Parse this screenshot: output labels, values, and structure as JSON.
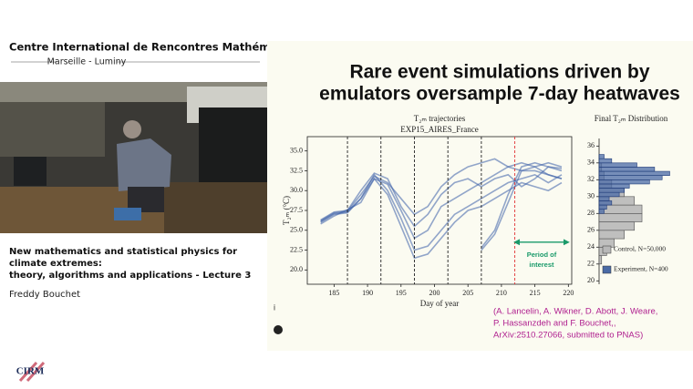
{
  "header": {
    "title": "Centre International de Rencontres Mathématiques",
    "subtitle": "Marseille - Luminy"
  },
  "lecture": {
    "title_lines": [
      "New mathematics and statistical physics for",
      "climate extremes:",
      "theory, algorithms and applications - Lecture 3"
    ],
    "speaker": "Freddy Bouchet"
  },
  "logo": "CIRM",
  "slide": {
    "title_lines": [
      "Rare event simulations driven by",
      "emulators oversample 7-day heatwaves"
    ]
  },
  "citation": {
    "lines": [
      "(A. Lancelin, A. Wikner, D. Abott, J. Weare,",
      "P. Hassanzdeh and F. Bouchet,,",
      "ArXiv:2510.27066, submitted to PNAS)"
    ]
  },
  "chart_data": [
    {
      "type": "line",
      "title": "T₂ₘ trajectories",
      "subtitle": "EXP15_AIRES_France",
      "x_label": "Day of year",
      "y_label": "T₂ₘ (°C)",
      "xlim": [
        181,
        220.5
      ],
      "xticks": [
        185,
        190,
        195,
        200,
        205,
        210,
        215,
        220
      ],
      "ylim": [
        18.2,
        36.8
      ],
      "yticks": [
        {
          "value": 20,
          "label": "20.0"
        },
        {
          "value": 22.5,
          "label": "22.5"
        },
        {
          "value": 25,
          "label": "25.0"
        },
        {
          "value": 27.5,
          "label": "27.5"
        },
        {
          "value": 30,
          "label": "30.0"
        },
        {
          "value": 32.5,
          "label": "32.5"
        },
        {
          "value": 35,
          "label": "35.0"
        }
      ],
      "vlines": [
        {
          "x": 187,
          "color": "#222222"
        },
        {
          "x": 192,
          "color": "#222222"
        },
        {
          "x": 197,
          "color": "#222222"
        },
        {
          "x": 202,
          "color": "#222222"
        },
        {
          "x": 207,
          "color": "#222222"
        },
        {
          "x": 212,
          "color": "#e03030"
        }
      ],
      "annotation": {
        "lines": [
          "Period of",
          "interest"
        ],
        "x": [
          212,
          220
        ],
        "y": 23.5,
        "color": "#1a9a6a"
      },
      "x": [
        183,
        185,
        187,
        189,
        191,
        193,
        195,
        197,
        199,
        201,
        203,
        205,
        207,
        209,
        211,
        213,
        215,
        217,
        219
      ],
      "series": [
        {
          "color": "#3a5fa8",
          "values": [
            25.8,
            26.8,
            27.6,
            28.5,
            31.5,
            30.8,
            27.5,
            24,
            25,
            28,
            29,
            30,
            31,
            32,
            33,
            33.5,
            33,
            33.5,
            33
          ]
        },
        {
          "color": "#3a5fa8",
          "values": [
            26.0,
            27.0,
            27.2,
            29,
            32,
            30,
            26.5,
            22.5,
            23,
            25,
            27,
            28,
            29,
            30,
            31,
            31.5,
            32,
            31,
            32
          ]
        },
        {
          "color": "#3a5fa8",
          "values": [
            26.2,
            27.2,
            27.4,
            29.5,
            31.8,
            31,
            29,
            27,
            28,
            30.5,
            32,
            33,
            33.5,
            34,
            33,
            32.5,
            33,
            32,
            31.5
          ]
        },
        {
          "color": "#3a5fa8",
          "values": [
            26.1,
            27.1,
            27.3,
            29,
            31.5,
            29.5,
            25.5,
            21.5,
            22,
            24,
            26,
            27.5,
            28,
            29,
            30,
            31,
            30.5,
            30,
            31
          ]
        },
        {
          "color": "#3a5fa8",
          "values": [
            26.3,
            27.3,
            27.5,
            30,
            32.2,
            31.5,
            28,
            25.5,
            27,
            29.5,
            31,
            31.5,
            30.5,
            31.5,
            32,
            30.5,
            31.5,
            33,
            32.5
          ]
        },
        {
          "color": "#3a5fa8",
          "values": [
            null,
            null,
            null,
            null,
            null,
            null,
            null,
            null,
            null,
            null,
            null,
            null,
            22.5,
            24.5,
            28.5,
            32.5,
            32.5,
            32,
            31.5
          ]
        },
        {
          "color": "#3a5fa8",
          "values": [
            null,
            null,
            null,
            null,
            null,
            null,
            null,
            null,
            null,
            null,
            null,
            null,
            22.8,
            25,
            29.5,
            33,
            33.5,
            33,
            32.8
          ]
        }
      ]
    },
    {
      "type": "histogram",
      "orientation": "horizontal",
      "title": "Final T₂ₘ Distribution",
      "ylim": [
        19.6,
        36.9
      ],
      "yticks": [
        20,
        22,
        24,
        26,
        28,
        30,
        32,
        34,
        36
      ],
      "xlim": [
        0,
        0.3
      ],
      "series": [
        {
          "name": "Control, N=50,000",
          "color": "#b8b8b8",
          "bins": [
            22,
            23,
            24,
            25,
            26,
            27,
            28,
            29,
            30,
            31,
            32,
            33,
            34
          ],
          "values": [
            0.01,
            0.03,
            0.06,
            0.1,
            0.14,
            0.17,
            0.17,
            0.14,
            0.1,
            0.05,
            0.02,
            0.01
          ]
        },
        {
          "name": "Experiment, N=400",
          "color": "#4a6aa5",
          "bins": [
            28,
            28.5,
            29,
            29.5,
            30,
            30.5,
            31,
            31.5,
            32,
            32.5,
            33,
            33.5,
            34,
            34.5,
            35
          ],
          "values": [
            0.02,
            0.03,
            0.05,
            0.04,
            0.08,
            0.1,
            0.12,
            0.2,
            0.25,
            0.28,
            0.22,
            0.15,
            0.05,
            0.02
          ]
        }
      ]
    }
  ]
}
